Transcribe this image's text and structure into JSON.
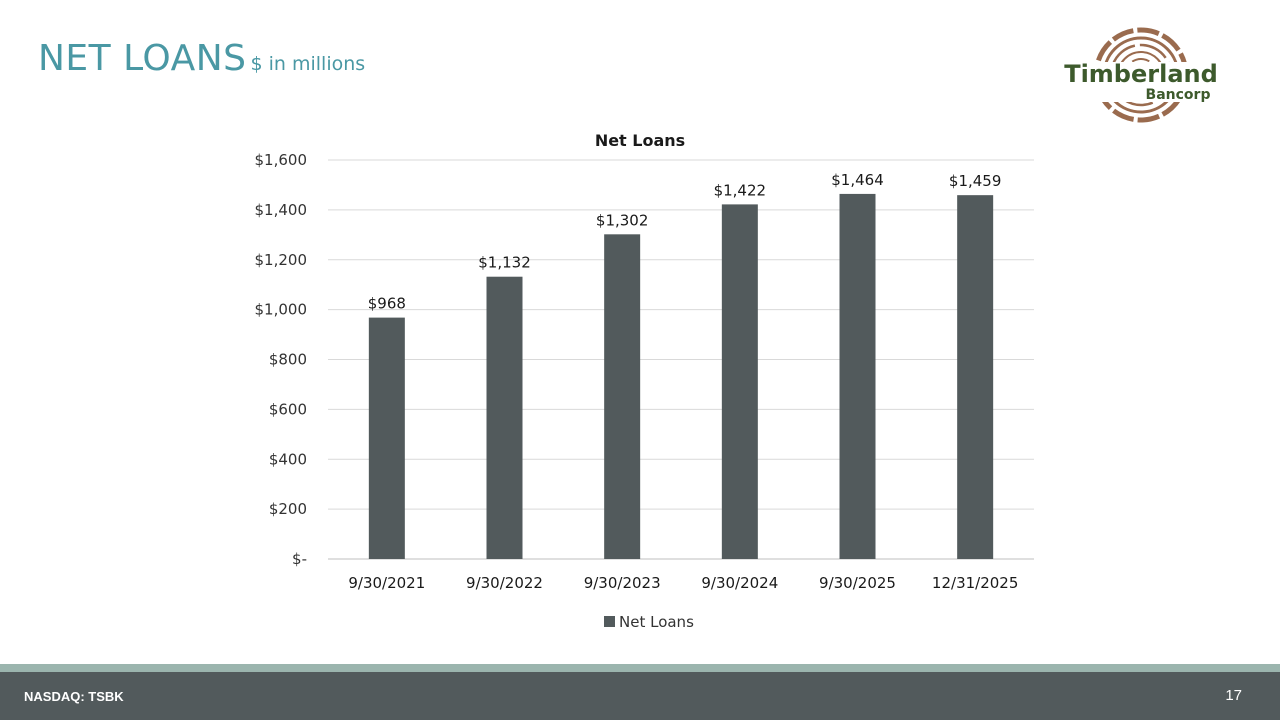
{
  "header": {
    "title": "NET LOANS",
    "subtitle": "$ in millions"
  },
  "logo": {
    "name": "Timberland",
    "sub": "Bancorp",
    "colors": {
      "text": "#3d5a2c",
      "rings": "#9a6b4e"
    }
  },
  "footer": {
    "ticker": "NASDAQ: TSBK",
    "page_number": "17"
  },
  "colors": {
    "accent": "#4a98a4",
    "bar": "#525a5c",
    "footer": "#525a5c",
    "footer_stripe": "#9bb5ae"
  },
  "chart_data": {
    "type": "bar",
    "title": "Net Loans",
    "categories": [
      "9/30/2021",
      "9/30/2022",
      "9/30/2023",
      "9/30/2024",
      "9/30/2025",
      "12/31/2025"
    ],
    "series": [
      {
        "name": "Net Loans",
        "values": [
          968,
          1132,
          1302,
          1422,
          1464,
          1459
        ],
        "labels": [
          "$968",
          "$1,132",
          "$1,302",
          "$1,422",
          "$1,464",
          "$1,459"
        ]
      }
    ],
    "ylim": [
      0,
      1600
    ],
    "yticks": [
      0,
      200,
      400,
      600,
      800,
      1000,
      1200,
      1400,
      1600
    ],
    "ytick_labels": [
      "$-",
      "$200",
      "$400",
      "$600",
      "$800",
      "$1,000",
      "$1,200",
      "$1,400",
      "$1,600"
    ],
    "grid": true,
    "legend": "bottom"
  }
}
